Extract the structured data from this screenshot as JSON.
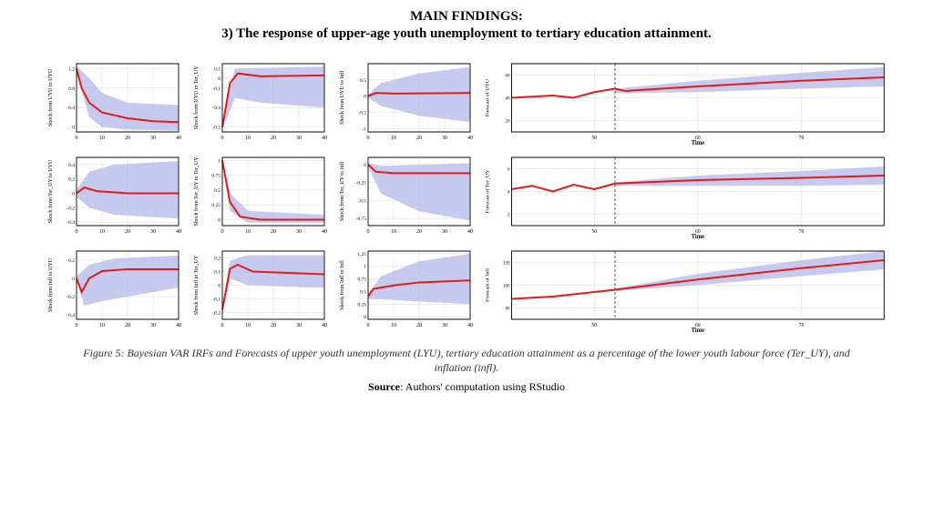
{
  "title": "MAIN FINDINGS:",
  "subtitle": "3) The response of upper-age youth unemployment to tertiary education attainment.",
  "caption": "Figure 5: Bayesian VAR IRFs and Forecasts of upper youth unemployment (LYU), tertiary education attainment as a percentage of the lower youth labour force (Ter_UY), and inflation (infl).",
  "source_label": "Source",
  "source_text": ": Authors' computation using RStudio",
  "colors": {
    "band": "#b3b8e8",
    "line": "#e01b1b",
    "axis": "#000000",
    "grid": "#d9d9d9",
    "bg": "#ffffff",
    "dashed": "#222222"
  },
  "small_axis": {
    "x_ticks": [
      0,
      10,
      20,
      30,
      40
    ],
    "x_label": ""
  },
  "wide_axis": {
    "x_ticks": [
      50,
      60,
      70
    ],
    "x_label": "Time",
    "vline_x": 52
  },
  "panels": [
    {
      "id": "s_00",
      "type": "irf",
      "ylabel": "Shock from UYU to UYU",
      "yticks": [
        0.0,
        0.4,
        0.8,
        1.2
      ],
      "ylim": [
        -0.1,
        1.3
      ],
      "line": [
        [
          0,
          1.2
        ],
        [
          2,
          0.8
        ],
        [
          5,
          0.5
        ],
        [
          10,
          0.3
        ],
        [
          20,
          0.18
        ],
        [
          30,
          0.12
        ],
        [
          40,
          0.1
        ]
      ],
      "band_top": [
        [
          0,
          1.25
        ],
        [
          5,
          1.0
        ],
        [
          10,
          0.7
        ],
        [
          20,
          0.5
        ],
        [
          40,
          0.45
        ]
      ],
      "band_bot": [
        [
          0,
          1.1
        ],
        [
          5,
          0.2
        ],
        [
          10,
          0.0
        ],
        [
          20,
          -0.05
        ],
        [
          40,
          -0.08
        ]
      ]
    },
    {
      "id": "s_01",
      "type": "irf",
      "ylabel": "Shock from UYU to Ter_UY",
      "yticks": [
        -0.5,
        -0.3,
        -0.1,
        0.0,
        0.1
      ],
      "ylim": [
        -0.55,
        0.15
      ],
      "line": [
        [
          0,
          -0.5
        ],
        [
          3,
          -0.05
        ],
        [
          6,
          0.05
        ],
        [
          15,
          0.02
        ],
        [
          40,
          0.03
        ]
      ],
      "band_top": [
        [
          0,
          -0.45
        ],
        [
          5,
          0.1
        ],
        [
          40,
          0.12
        ]
      ],
      "band_bot": [
        [
          0,
          -0.52
        ],
        [
          5,
          -0.2
        ],
        [
          15,
          -0.25
        ],
        [
          40,
          -0.3
        ]
      ]
    },
    {
      "id": "s_02",
      "type": "irf",
      "ylabel": "Shock from UYU to Infl",
      "yticks": [
        -1.0,
        -0.5,
        0.0,
        0.5
      ],
      "ylim": [
        -1.1,
        1.0
      ],
      "line": [
        [
          0,
          0
        ],
        [
          3,
          0.1
        ],
        [
          10,
          0.08
        ],
        [
          40,
          0.1
        ]
      ],
      "band_top": [
        [
          0,
          0.05
        ],
        [
          5,
          0.4
        ],
        [
          20,
          0.7
        ],
        [
          40,
          0.9
        ]
      ],
      "band_bot": [
        [
          0,
          -0.05
        ],
        [
          5,
          -0.3
        ],
        [
          20,
          -0.6
        ],
        [
          40,
          -0.8
        ]
      ]
    },
    {
      "id": "w_0",
      "type": "forecast",
      "ylabel": "Forecast of UYU",
      "yticks": [
        20,
        40,
        60
      ],
      "ylim": [
        10,
        70
      ],
      "xlim": [
        42,
        78
      ],
      "line": [
        [
          42,
          40
        ],
        [
          46,
          42
        ],
        [
          48,
          40
        ],
        [
          50,
          45
        ],
        [
          52,
          48
        ],
        [
          53,
          46
        ],
        [
          60,
          50
        ],
        [
          70,
          55
        ],
        [
          78,
          58
        ]
      ],
      "band_top": [
        [
          52,
          48
        ],
        [
          60,
          55
        ],
        [
          70,
          62
        ],
        [
          78,
          67
        ]
      ],
      "band_bot": [
        [
          52,
          44
        ],
        [
          60,
          45
        ],
        [
          70,
          48
        ],
        [
          78,
          50
        ]
      ]
    },
    {
      "id": "s_10",
      "type": "irf",
      "ylabel": "Shock from Ter_UY to UYU",
      "yticks": [
        -0.4,
        -0.2,
        0.0,
        0.2,
        0.4
      ],
      "ylim": [
        -0.45,
        0.5
      ],
      "line": [
        [
          0,
          0
        ],
        [
          3,
          0.08
        ],
        [
          8,
          0.03
        ],
        [
          20,
          0.0
        ],
        [
          40,
          0.0
        ]
      ],
      "band_top": [
        [
          0,
          0.05
        ],
        [
          5,
          0.3
        ],
        [
          15,
          0.4
        ],
        [
          40,
          0.45
        ]
      ],
      "band_bot": [
        [
          0,
          -0.05
        ],
        [
          5,
          -0.2
        ],
        [
          15,
          -0.3
        ],
        [
          40,
          -0.35
        ]
      ]
    },
    {
      "id": "s_11",
      "type": "irf",
      "ylabel": "Shock from Ter_UY to Ter_UY",
      "yticks": [
        0.0,
        0.25,
        0.5,
        0.75,
        1.0
      ],
      "ylim": [
        -0.1,
        1.05
      ],
      "line": [
        [
          0,
          1.0
        ],
        [
          3,
          0.3
        ],
        [
          7,
          0.05
        ],
        [
          15,
          0.0
        ],
        [
          40,
          0.0
        ]
      ],
      "band_top": [
        [
          0,
          1.02
        ],
        [
          3,
          0.45
        ],
        [
          10,
          0.15
        ],
        [
          40,
          0.08
        ]
      ],
      "band_bot": [
        [
          0,
          0.95
        ],
        [
          3,
          0.15
        ],
        [
          10,
          -0.05
        ],
        [
          40,
          -0.05
        ]
      ]
    },
    {
      "id": "s_12",
      "type": "irf",
      "ylabel": "Shock from Ter_UY to Infl",
      "yticks": [
        -0.75,
        -0.5,
        -0.25,
        0.0
      ],
      "ylim": [
        -0.85,
        0.1
      ],
      "line": [
        [
          0,
          0.0
        ],
        [
          3,
          -0.1
        ],
        [
          10,
          -0.12
        ],
        [
          40,
          -0.12
        ]
      ],
      "band_top": [
        [
          0,
          0.02
        ],
        [
          5,
          -0.02
        ],
        [
          40,
          0.02
        ]
      ],
      "band_bot": [
        [
          0,
          -0.03
        ],
        [
          5,
          -0.4
        ],
        [
          20,
          -0.65
        ],
        [
          40,
          -0.78
        ]
      ]
    },
    {
      "id": "w_1",
      "type": "forecast",
      "ylabel": "Forecast of Ter_UY",
      "yticks": [
        2,
        4,
        6
      ],
      "ylim": [
        1,
        7
      ],
      "xlim": [
        42,
        78
      ],
      "line": [
        [
          42,
          4.2
        ],
        [
          44,
          4.5
        ],
        [
          46,
          4.0
        ],
        [
          48,
          4.6
        ],
        [
          50,
          4.2
        ],
        [
          52,
          4.7
        ],
        [
          60,
          5.0
        ],
        [
          70,
          5.2
        ],
        [
          78,
          5.4
        ]
      ],
      "band_top": [
        [
          52,
          4.8
        ],
        [
          60,
          5.4
        ],
        [
          70,
          5.8
        ],
        [
          78,
          6.2
        ]
      ],
      "band_bot": [
        [
          52,
          4.5
        ],
        [
          60,
          4.5
        ],
        [
          70,
          4.5
        ],
        [
          78,
          4.6
        ]
      ]
    },
    {
      "id": "s_20",
      "type": "irf",
      "ylabel": "Shock from Infl to UYU",
      "yticks": [
        -0.4,
        -0.2,
        0.0,
        0.2
      ],
      "ylim": [
        -0.45,
        0.3
      ],
      "line": [
        [
          0,
          0
        ],
        [
          2,
          -0.15
        ],
        [
          5,
          0.0
        ],
        [
          10,
          0.08
        ],
        [
          20,
          0.1
        ],
        [
          40,
          0.1
        ]
      ],
      "band_top": [
        [
          0,
          0.02
        ],
        [
          5,
          0.15
        ],
        [
          15,
          0.22
        ],
        [
          40,
          0.25
        ]
      ],
      "band_bot": [
        [
          0,
          -0.02
        ],
        [
          3,
          -0.3
        ],
        [
          10,
          -0.25
        ],
        [
          40,
          -0.1
        ]
      ]
    },
    {
      "id": "s_21",
      "type": "irf",
      "ylabel": "Shock from Infl to Ter_UY",
      "yticks": [
        -0.2,
        -0.1,
        0.0,
        0.1,
        0.2
      ],
      "ylim": [
        -0.25,
        0.25
      ],
      "line": [
        [
          0,
          -0.18
        ],
        [
          3,
          0.12
        ],
        [
          6,
          0.15
        ],
        [
          12,
          0.1
        ],
        [
          40,
          0.08
        ]
      ],
      "band_top": [
        [
          0,
          -0.15
        ],
        [
          3,
          0.18
        ],
        [
          10,
          0.22
        ],
        [
          40,
          0.22
        ]
      ],
      "band_bot": [
        [
          0,
          -0.2
        ],
        [
          3,
          0.05
        ],
        [
          10,
          0.0
        ],
        [
          40,
          -0.02
        ]
      ]
    },
    {
      "id": "s_22",
      "type": "irf",
      "ylabel": "Shock from Infl to Infl",
      "yticks": [
        0.0,
        0.25,
        0.5,
        0.75,
        1.0,
        1.25
      ],
      "ylim": [
        -0.05,
        1.3
      ],
      "line": [
        [
          0,
          0.4
        ],
        [
          2,
          0.55
        ],
        [
          10,
          0.62
        ],
        [
          20,
          0.68
        ],
        [
          40,
          0.72
        ]
      ],
      "band_top": [
        [
          0,
          0.45
        ],
        [
          5,
          0.8
        ],
        [
          20,
          1.1
        ],
        [
          40,
          1.25
        ]
      ],
      "band_bot": [
        [
          0,
          0.35
        ],
        [
          5,
          0.35
        ],
        [
          20,
          0.3
        ],
        [
          40,
          0.25
        ]
      ]
    },
    {
      "id": "w_2",
      "type": "forecast",
      "ylabel": "Forecast of Infl",
      "yticks": [
        80,
        100,
        120
      ],
      "ylim": [
        70,
        130
      ],
      "xlim": [
        42,
        78
      ],
      "line": [
        [
          42,
          88
        ],
        [
          46,
          90
        ],
        [
          50,
          94
        ],
        [
          52,
          96
        ],
        [
          60,
          105
        ],
        [
          70,
          115
        ],
        [
          78,
          122
        ]
      ],
      "band_top": [
        [
          52,
          97
        ],
        [
          60,
          110
        ],
        [
          70,
          122
        ],
        [
          78,
          130
        ]
      ],
      "band_bot": [
        [
          52,
          95
        ],
        [
          60,
          100
        ],
        [
          70,
          108
        ],
        [
          78,
          114
        ]
      ]
    }
  ]
}
